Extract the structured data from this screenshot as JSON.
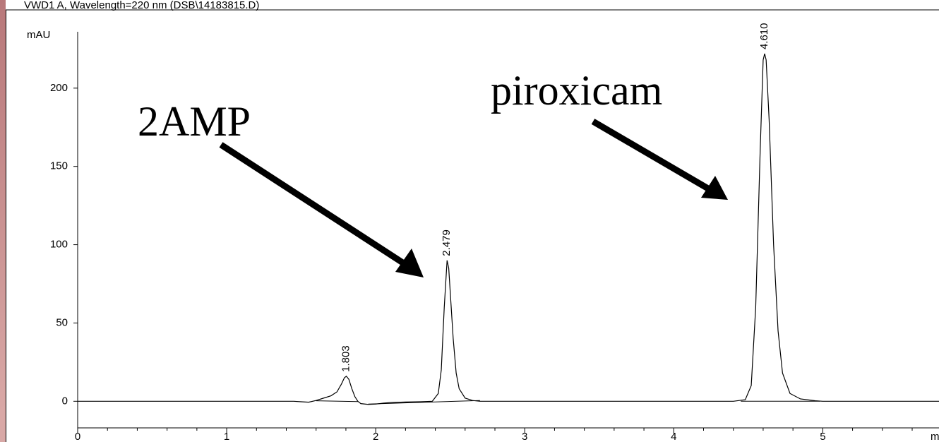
{
  "chart_data": {
    "type": "line",
    "title": "VWD1 A, Wavelength=220 nm (DSB\\14183815.D)",
    "y_label": "mAU",
    "x_label": "min",
    "color": "#000000",
    "xlim": [
      0,
      5.78
    ],
    "ylim": [
      -17,
      236
    ],
    "xticks": [
      0,
      1,
      2,
      3,
      4,
      5
    ],
    "xminorticks": [
      0.2,
      0.4,
      0.6,
      0.8,
      1.2,
      1.4,
      1.6,
      1.8,
      2.2,
      2.4,
      2.6,
      2.8,
      3.2,
      3.4,
      3.6,
      3.8,
      4.2,
      4.4,
      4.6,
      4.8,
      5.2,
      5.4,
      5.6
    ],
    "yticks": [
      0,
      50,
      100,
      150,
      200
    ],
    "x": [
      0,
      1.45,
      1.5,
      1.55,
      1.6,
      1.65,
      1.7,
      1.74,
      1.77,
      1.79,
      1.803,
      1.82,
      1.84,
      1.86,
      1.88,
      1.9,
      1.95,
      2.0,
      2.05,
      2.1,
      2.2,
      2.3,
      2.38,
      2.42,
      2.44,
      2.46,
      2.479,
      2.49,
      2.5,
      2.52,
      2.54,
      2.56,
      2.6,
      2.65,
      2.7,
      4.4,
      4.48,
      4.52,
      4.55,
      4.58,
      4.6,
      4.61,
      4.62,
      4.64,
      4.67,
      4.7,
      4.73,
      4.78,
      4.85,
      4.95,
      5.0,
      5.78
    ],
    "values": [
      0,
      0,
      -0.3,
      -0.6,
      0.5,
      2,
      3.5,
      6,
      11,
      15,
      16,
      14,
      8,
      3,
      0,
      -1.5,
      -2,
      -1.8,
      -1.2,
      -0.8,
      -0.5,
      -0.3,
      0,
      5,
      20,
      60,
      90,
      85,
      70,
      40,
      18,
      8,
      2,
      0.5,
      0,
      0,
      1,
      10,
      60,
      160,
      218,
      222,
      218,
      180,
      100,
      45,
      18,
      5,
      1.5,
      0.3,
      0,
      0
    ],
    "baselines": [
      {
        "x": [
          1.6,
          1.88
        ],
        "values": [
          0.3,
          -0.2
        ]
      },
      {
        "x": [
          1.95,
          2.7
        ],
        "values": [
          -1.8,
          0.5
        ]
      },
      {
        "x": [
          4.45,
          4.98
        ],
        "values": [
          0,
          0
        ]
      }
    ],
    "peaks": [
      {
        "x": 1.803,
        "height": 16,
        "label": "1.803"
      },
      {
        "x": 2.479,
        "height": 90,
        "label": "2.479"
      },
      {
        "x": 4.61,
        "height": 222,
        "label": "4.610"
      }
    ],
    "annotations": [
      "2AMP",
      "piroxicam"
    ]
  }
}
